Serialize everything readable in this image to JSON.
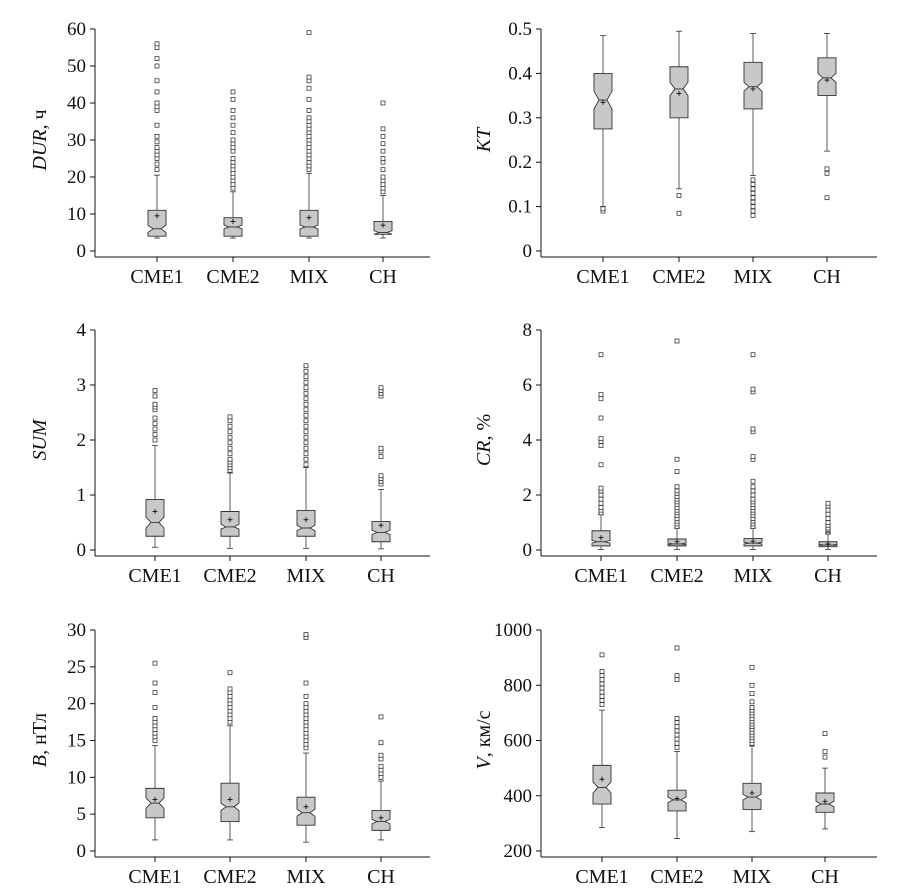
{
  "chart_data": [
    {
      "type": "box",
      "ylabel": {
        "main": "DUR",
        "unit": ", ч"
      },
      "ylim": [
        0,
        60
      ],
      "yticks": [
        0,
        10,
        20,
        30,
        40,
        50,
        60
      ],
      "categories": [
        "CME1",
        "CME2",
        "MIX",
        "CH"
      ],
      "boxes": [
        {
          "whisker_low": 3.5,
          "q1": 4,
          "median": 6,
          "q3": 11,
          "whisker_high": 20.5,
          "mean": 9.5,
          "notch": [
            5,
            7
          ],
          "outliers": [
            22,
            23.5,
            25,
            26,
            27,
            28,
            29.5,
            31,
            34,
            38,
            39,
            40,
            43,
            46,
            50,
            52,
            55,
            56
          ]
        },
        {
          "whisker_low": 3.5,
          "q1": 4,
          "median": 6.5,
          "q3": 9,
          "whisker_high": 16,
          "mean": 8,
          "notch": [
            6,
            7
          ],
          "outliers": [
            17,
            18,
            19,
            20,
            21,
            22,
            23,
            24,
            25,
            27,
            28,
            29,
            30,
            32,
            34,
            36,
            38,
            41,
            43
          ]
        },
        {
          "whisker_low": 3.5,
          "q1": 4,
          "median": 6.5,
          "q3": 11,
          "whisker_high": 21,
          "mean": 9,
          "notch": [
            6,
            7
          ],
          "outliers": [
            22,
            23,
            24,
            25,
            26,
            27,
            28,
            29,
            30,
            31,
            32,
            33,
            34,
            35,
            36,
            38,
            41,
            44,
            46,
            47,
            59
          ]
        },
        {
          "whisker_low": 3.5,
          "q1": 4.5,
          "median": 5,
          "q3": 8,
          "whisker_high": 15,
          "mean": 7,
          "notch": [
            4.5,
            5.5
          ],
          "outliers": [
            16,
            17,
            18,
            19,
            20,
            22,
            24,
            25,
            27,
            29,
            31,
            33,
            40
          ]
        }
      ]
    },
    {
      "type": "box",
      "ylabel": {
        "main": "KT",
        "unit": ""
      },
      "ylim": [
        0,
        0.5
      ],
      "yticks": [
        "0",
        "0.1",
        "0.2",
        "0.3",
        "0.4",
        "0.5"
      ],
      "categories": [
        "CME1",
        "CME2",
        "MIX",
        "CH"
      ],
      "boxes": [
        {
          "whisker_low": 0.1,
          "q1": 0.275,
          "median": 0.34,
          "q3": 0.4,
          "whisker_high": 0.485,
          "mean": 0.335,
          "notch": [
            0.32,
            0.36
          ],
          "outliers": [
            0.09,
            0.095
          ]
        },
        {
          "whisker_low": 0.14,
          "q1": 0.3,
          "median": 0.365,
          "q3": 0.415,
          "whisker_high": 0.495,
          "mean": 0.355,
          "notch": [
            0.35,
            0.38
          ],
          "outliers": [
            0.085,
            0.125
          ]
        },
        {
          "whisker_low": 0.17,
          "q1": 0.32,
          "median": 0.37,
          "q3": 0.425,
          "whisker_high": 0.49,
          "mean": 0.365,
          "notch": [
            0.36,
            0.38
          ],
          "outliers": [
            0.08,
            0.09,
            0.1,
            0.11,
            0.12,
            0.13,
            0.14,
            0.15,
            0.16
          ]
        },
        {
          "whisker_low": 0.225,
          "q1": 0.35,
          "median": 0.39,
          "q3": 0.435,
          "whisker_high": 0.49,
          "mean": 0.385,
          "notch": [
            0.38,
            0.4
          ],
          "outliers": [
            0.12,
            0.175,
            0.185
          ]
        }
      ]
    },
    {
      "type": "box",
      "ylabel": {
        "main": "SUM",
        "unit": ""
      },
      "ylim": [
        0,
        4
      ],
      "yticks": [
        0,
        1,
        2,
        3,
        4
      ],
      "categories": [
        "CME1",
        "CME2",
        "MIX",
        "CH"
      ],
      "boxes": [
        {
          "whisker_low": 0.05,
          "q1": 0.25,
          "median": 0.5,
          "q3": 0.92,
          "whisker_high": 1.9,
          "mean": 0.7,
          "notch": [
            0.4,
            0.6
          ],
          "outliers": [
            2.0,
            2.1,
            2.2,
            2.3,
            2.4,
            2.55,
            2.6,
            2.65,
            2.8,
            2.9
          ]
        },
        {
          "whisker_low": 0.03,
          "q1": 0.25,
          "median": 0.42,
          "q3": 0.7,
          "whisker_high": 1.4,
          "mean": 0.55,
          "notch": [
            0.38,
            0.47
          ],
          "outliers": [
            1.45,
            1.5,
            1.55,
            1.6,
            1.65,
            1.75,
            1.85,
            1.95,
            2.05,
            2.15,
            2.25,
            2.35,
            2.42
          ]
        },
        {
          "whisker_low": 0.03,
          "q1": 0.25,
          "median": 0.4,
          "q3": 0.72,
          "whisker_high": 1.5,
          "mean": 0.55,
          "notch": [
            0.35,
            0.45
          ],
          "outliers": [
            1.55,
            1.65,
            1.75,
            1.85,
            1.95,
            2.05,
            2.15,
            2.25,
            2.35,
            2.45,
            2.55,
            2.65,
            2.75,
            2.85,
            2.95,
            3.05,
            3.15,
            3.25,
            3.35
          ]
        },
        {
          "whisker_low": 0.02,
          "q1": 0.15,
          "median": 0.32,
          "q3": 0.52,
          "whisker_high": 1.1,
          "mean": 0.45,
          "notch": [
            0.28,
            0.36
          ],
          "outliers": [
            1.2,
            1.25,
            1.3,
            1.35,
            1.7,
            1.8,
            1.85,
            2.8,
            2.85,
            2.9,
            2.95
          ]
        }
      ]
    },
    {
      "type": "box",
      "ylabel": {
        "main": "CR",
        "unit": ", %"
      },
      "ylim": [
        0,
        8
      ],
      "yticks": [
        0,
        2,
        4,
        6,
        8
      ],
      "categories": [
        "CME1",
        "CME2",
        "MIX",
        "CH"
      ],
      "boxes": [
        {
          "whisker_low": 0.02,
          "q1": 0.15,
          "median": 0.3,
          "q3": 0.7,
          "whisker_high": 1.3,
          "mean": 0.45,
          "notch": [
            0.25,
            0.35
          ],
          "outliers": [
            1.35,
            1.45,
            1.55,
            1.7,
            1.85,
            2.0,
            2.15,
            2.25,
            3.1,
            3.8,
            3.95,
            4.05,
            4.8,
            5.5,
            5.65,
            7.1
          ]
        },
        {
          "whisker_low": 0.02,
          "q1": 0.15,
          "median": 0.22,
          "q3": 0.4,
          "whisker_high": 0.8,
          "mean": 0.3,
          "notch": [
            0.2,
            0.25
          ],
          "outliers": [
            0.85,
            0.95,
            1.05,
            1.15,
            1.25,
            1.35,
            1.45,
            1.55,
            1.65,
            1.75,
            1.85,
            1.95,
            2.05,
            2.15,
            2.3,
            2.85,
            3.3,
            7.6
          ]
        },
        {
          "whisker_low": 0.02,
          "q1": 0.15,
          "median": 0.25,
          "q3": 0.42,
          "whisker_high": 0.8,
          "mean": 0.32,
          "notch": [
            0.22,
            0.28
          ],
          "outliers": [
            0.85,
            0.95,
            1.05,
            1.15,
            1.25,
            1.35,
            1.45,
            1.55,
            1.65,
            1.75,
            1.85,
            2.0,
            2.15,
            2.3,
            2.5,
            3.3,
            3.4,
            4.3,
            4.4,
            5.75,
            5.85,
            7.1
          ]
        },
        {
          "whisker_low": 0.02,
          "q1": 0.12,
          "median": 0.18,
          "q3": 0.3,
          "whisker_high": 0.6,
          "mean": 0.22,
          "notch": [
            0.16,
            0.2
          ],
          "outliers": [
            0.65,
            0.7,
            0.75,
            0.8,
            0.9,
            1.0,
            1.15,
            1.3,
            1.45,
            1.6,
            1.7
          ]
        }
      ]
    },
    {
      "type": "box",
      "ylabel": {
        "main": "B",
        "unit": ", нТл"
      },
      "ylim": [
        0,
        30
      ],
      "yticks": [
        0,
        5,
        10,
        15,
        20,
        25,
        30
      ],
      "categories": [
        "CME1",
        "CME2",
        "MIX",
        "CH"
      ],
      "boxes": [
        {
          "whisker_low": 1.5,
          "q1": 4.5,
          "median": 6.5,
          "q3": 8.5,
          "whisker_high": 14.3,
          "mean": 7,
          "notch": [
            5.8,
            7.2
          ],
          "outliers": [
            15,
            15.5,
            16,
            16.5,
            17,
            17.5,
            18,
            19.5,
            21.5,
            22.8,
            25.5
          ]
        },
        {
          "whisker_low": 1.5,
          "q1": 4,
          "median": 6,
          "q3": 9.2,
          "whisker_high": 17,
          "mean": 7,
          "notch": [
            5.5,
            6.5
          ],
          "outliers": [
            17.5,
            18,
            18.5,
            19,
            19.5,
            20,
            20.5,
            21,
            21.5,
            22,
            24.2
          ]
        },
        {
          "whisker_low": 1.2,
          "q1": 3.5,
          "median": 5.2,
          "q3": 7.3,
          "whisker_high": 13.3,
          "mean": 6,
          "notch": [
            4.7,
            5.7
          ],
          "outliers": [
            14,
            14.5,
            15,
            15.5,
            16,
            16.5,
            17,
            17.5,
            18,
            18.5,
            19,
            19.5,
            20,
            21,
            22.8,
            29,
            29.4
          ]
        },
        {
          "whisker_low": 1.5,
          "q1": 2.8,
          "median": 4,
          "q3": 5.5,
          "whisker_high": 9.5,
          "mean": 4.5,
          "notch": [
            3.7,
            4.3
          ],
          "outliers": [
            10,
            10.5,
            11,
            11.5,
            12.5,
            13,
            14.7,
            18.2
          ]
        }
      ]
    },
    {
      "type": "box",
      "ylabel": {
        "main": "V",
        "unit": ", км/с"
      },
      "ylim": [
        200,
        1000
      ],
      "yticks": [
        200,
        400,
        600,
        800,
        1000
      ],
      "categories": [
        "CME1",
        "CME2",
        "MIX",
        "CH"
      ],
      "boxes": [
        {
          "whisker_low": 285,
          "q1": 370,
          "median": 430,
          "q3": 510,
          "whisker_high": 710,
          "mean": 460,
          "notch": [
            410,
            450
          ],
          "outliers": [
            730,
            745,
            760,
            775,
            790,
            805,
            820,
            835,
            850,
            910
          ]
        },
        {
          "whisker_low": 245,
          "q1": 345,
          "median": 385,
          "q3": 420,
          "whisker_high": 560,
          "mean": 390,
          "notch": [
            375,
            395
          ],
          "outliers": [
            575,
            590,
            605,
            620,
            635,
            650,
            665,
            680,
            820,
            835,
            935
          ]
        },
        {
          "whisker_low": 270,
          "q1": 350,
          "median": 395,
          "q3": 445,
          "whisker_high": 580,
          "mean": 410,
          "notch": [
            385,
            405
          ],
          "outliers": [
            590,
            600,
            610,
            620,
            630,
            640,
            650,
            660,
            670,
            680,
            690,
            700,
            710,
            720,
            740,
            770,
            800,
            865
          ]
        },
        {
          "whisker_low": 280,
          "q1": 340,
          "median": 370,
          "q3": 410,
          "whisker_high": 500,
          "mean": 380,
          "notch": [
            360,
            380
          ],
          "outliers": [
            540,
            560,
            625
          ]
        }
      ]
    }
  ],
  "style": {
    "box_fill": "#c8c8c8",
    "stroke": "#333333"
  }
}
